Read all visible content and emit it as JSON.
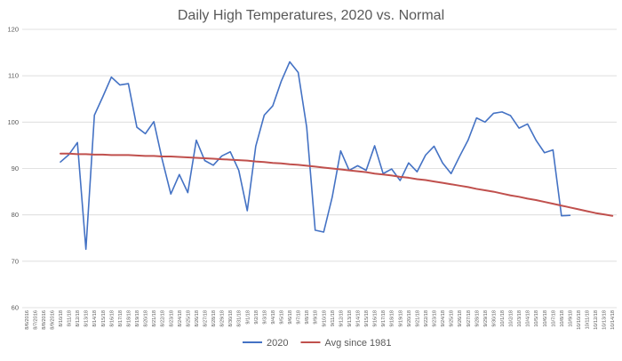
{
  "chart_data": {
    "type": "line",
    "title": "Daily High Temperatures, 2020 vs. Normal",
    "xlabel": "",
    "ylabel": "",
    "ylim": [
      60,
      120
    ],
    "yticks": [
      60,
      70,
      80,
      90,
      100,
      110,
      120
    ],
    "grid": true,
    "legend_position": "bottom",
    "categories": [
      "8/6/2016",
      "8/7/2016",
      "8/8/2016",
      "8/9/2016",
      "8/10/18",
      "8/11/18",
      "8/12/18",
      "8/13/18",
      "8/14/18",
      "8/15/18",
      "8/16/18",
      "8/17/18",
      "8/18/18",
      "8/19/18",
      "8/20/18",
      "8/21/18",
      "8/22/18",
      "8/23/18",
      "8/24/18",
      "8/25/18",
      "8/26/18",
      "8/27/18",
      "8/28/18",
      "8/29/18",
      "8/30/18",
      "8/31/18",
      "9/1/18",
      "9/2/18",
      "9/3/18",
      "9/4/18",
      "9/5/18",
      "9/6/18",
      "9/7/18",
      "9/8/18",
      "9/9/18",
      "9/10/18",
      "9/11/18",
      "9/12/18",
      "9/13/18",
      "9/14/18",
      "9/15/18",
      "9/16/18",
      "9/17/18",
      "9/18/18",
      "9/19/18",
      "9/20/18",
      "9/21/18",
      "9/22/18",
      "9/23/18",
      "9/24/18",
      "9/25/18",
      "9/26/18",
      "9/27/18",
      "9/28/18",
      "9/29/18",
      "9/30/18",
      "10/1/18",
      "10/2/18",
      "10/3/18",
      "10/4/18",
      "10/5/18",
      "10/6/18",
      "10/7/18",
      "10/8/18",
      "10/9/18",
      "10/10/18",
      "10/11/18",
      "10/12/18",
      "10/13/18",
      "10/14/18"
    ],
    "series": [
      {
        "name": "2020",
        "color": "#4472c4",
        "values": [
          null,
          null,
          null,
          null,
          91.4,
          93.0,
          95.6,
          72.6,
          101.5,
          105.5,
          109.7,
          108.0,
          108.3,
          98.9,
          97.5,
          100.1,
          91.8,
          84.5,
          88.7,
          84.8,
          96.1,
          91.7,
          90.7,
          92.7,
          93.6,
          89.6,
          80.9,
          94.8,
          101.5,
          103.5,
          108.8,
          113.0,
          110.7,
          98.9,
          76.7,
          76.3,
          83.8,
          93.8,
          89.6,
          90.6,
          89.6,
          94.9,
          88.9,
          89.9,
          87.4,
          91.2,
          89.3,
          92.9,
          94.8,
          91.2,
          88.9,
          92.6,
          96.1,
          100.9,
          100.0,
          101.9,
          102.2,
          101.4,
          98.7,
          99.6,
          96.1,
          93.4,
          94.0,
          79.8,
          79.9,
          null,
          null,
          null,
          null,
          null
        ]
      },
      {
        "name": "Avg since 1981",
        "color": "#c0504d",
        "values": [
          null,
          null,
          null,
          null,
          93.2,
          93.2,
          93.1,
          93.1,
          93.0,
          93.0,
          92.9,
          92.9,
          92.9,
          92.8,
          92.7,
          92.7,
          92.6,
          92.6,
          92.5,
          92.4,
          92.3,
          92.2,
          92.1,
          92.0,
          91.9,
          91.8,
          91.7,
          91.5,
          91.4,
          91.2,
          91.1,
          90.9,
          90.8,
          90.6,
          90.4,
          90.2,
          90.0,
          89.8,
          89.6,
          89.4,
          89.2,
          88.9,
          88.7,
          88.5,
          88.2,
          88.0,
          87.7,
          87.5,
          87.2,
          86.9,
          86.6,
          86.3,
          86.0,
          85.6,
          85.3,
          85.0,
          84.6,
          84.2,
          83.9,
          83.5,
          83.2,
          82.8,
          82.4,
          82.0,
          81.6,
          81.2,
          80.8,
          80.4,
          80.1,
          79.8
        ]
      }
    ]
  }
}
